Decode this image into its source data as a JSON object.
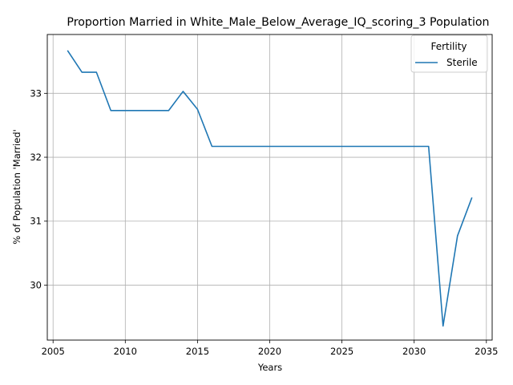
{
  "chart_data": {
    "type": "line",
    "title": "Proportion Married in White_Male_Below_Average_IQ_scoring_3 Population",
    "xlabel": "Years",
    "ylabel": "% of Population 'Married'",
    "xlim": [
      2004.6,
      2035.4
    ],
    "ylim": [
      29.14,
      33.92
    ],
    "xticks": [
      2005,
      2010,
      2015,
      2020,
      2025,
      2030,
      2035
    ],
    "yticks": [
      30,
      31,
      32,
      33
    ],
    "grid": true,
    "legend": {
      "title": "Fertility",
      "placement": "top-right"
    },
    "series": [
      {
        "name": "Sterile",
        "color": "#1f77b4",
        "x": [
          2006,
          2007,
          2008,
          2009,
          2010,
          2011,
          2012,
          2013,
          2014,
          2015,
          2016,
          2017,
          2018,
          2019,
          2020,
          2021,
          2022,
          2023,
          2024,
          2025,
          2026,
          2027,
          2028,
          2029,
          2030,
          2031,
          2032,
          2033,
          2034
        ],
        "y": [
          33.67,
          33.33,
          33.33,
          32.73,
          32.73,
          32.73,
          32.73,
          32.73,
          33.03,
          32.75,
          32.17,
          32.17,
          32.17,
          32.17,
          32.17,
          32.17,
          32.17,
          32.17,
          32.17,
          32.17,
          32.17,
          32.17,
          32.17,
          32.17,
          32.17,
          32.17,
          29.36,
          30.77,
          31.37
        ]
      }
    ]
  }
}
